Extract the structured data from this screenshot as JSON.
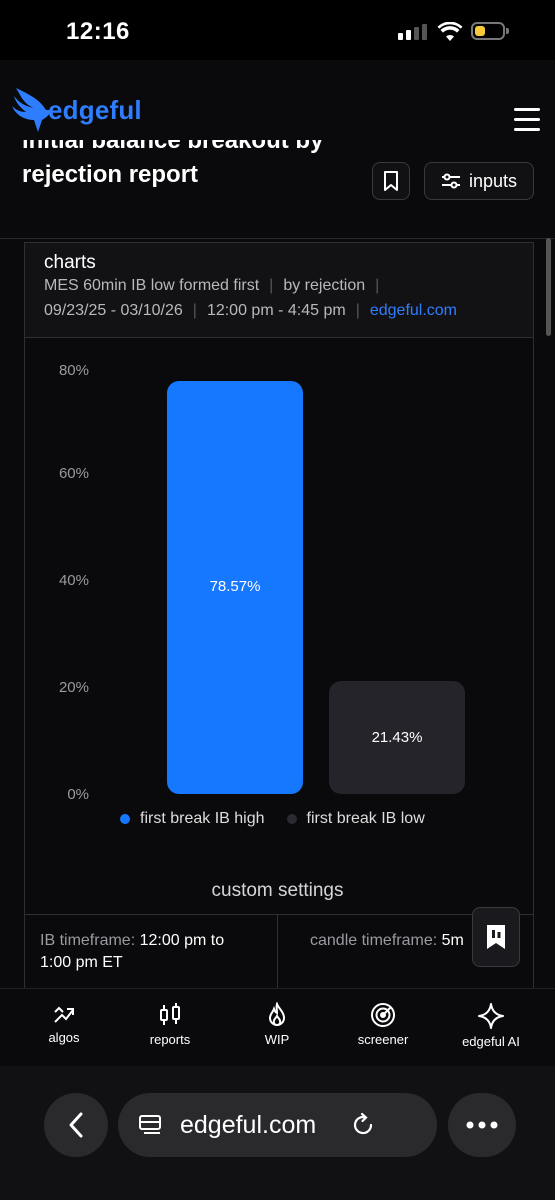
{
  "status": {
    "time": "12:16"
  },
  "header": {
    "brand": "edgeful"
  },
  "report": {
    "title_line1": "initial balance breakout by",
    "title_line2": "rejection report",
    "inputs_label": "inputs"
  },
  "card": {
    "title": "charts",
    "meta1": [
      "MES 60min IB low formed first",
      "by rejection"
    ],
    "meta2": [
      "09/23/25 - 03/10/26",
      "12:00 pm - 4:45 pm",
      "edgeful.com"
    ]
  },
  "chart_data": {
    "type": "bar",
    "categories": [
      "first break IB high",
      "first break IB low"
    ],
    "values": [
      78.57,
      21.43
    ],
    "value_labels": [
      "78.57%",
      "21.43%"
    ],
    "colors": [
      "#1677ff",
      "#24242a"
    ],
    "ylim": [
      0,
      80
    ],
    "yticks": [
      "80%",
      "60%",
      "40%",
      "20%",
      "0%"
    ],
    "legend": [
      "first break IB high",
      "first break IB low"
    ],
    "legend_position": "bottom"
  },
  "settings": {
    "heading": "custom settings",
    "ib_label": "IB timeframe:",
    "ib_value_1": "12:00 pm to",
    "ib_value_2": "1:00 pm ET",
    "candle_label": "candle timeframe:",
    "candle_value": "5m"
  },
  "nav": {
    "items": [
      {
        "label": "algos",
        "icon": "trend-arrow-icon"
      },
      {
        "label": "reports",
        "icon": "candlestick-icon"
      },
      {
        "label": "WIP",
        "icon": "flame-icon"
      },
      {
        "label": "screener",
        "icon": "radar-icon"
      },
      {
        "label": "edgeful AI",
        "icon": "sparkle-icon"
      }
    ]
  },
  "browser": {
    "url": "edgeful.com"
  }
}
